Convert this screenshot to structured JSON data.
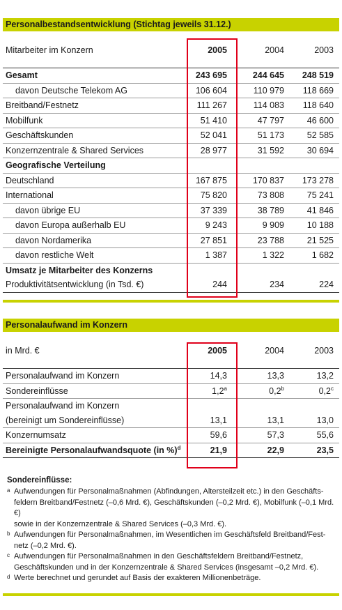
{
  "section1": {
    "title": "Personalbestandsentwicklung (Stichtag jeweils 31.12.)",
    "header": {
      "label": "Mitarbeiter im Konzern",
      "y2005": "2005",
      "y2004": "2004",
      "y2003": "2003"
    },
    "rows": [
      {
        "label": "Gesamt",
        "v2005": "243 695",
        "v2004": "244 645",
        "v2003": "248 519"
      },
      {
        "label": "davon Deutsche Telekom AG",
        "v2005": "106 604",
        "v2004": "110 979",
        "v2003": "118 669"
      },
      {
        "label": "Breitband/Festnetz",
        "v2005": "111 267",
        "v2004": "114 083",
        "v2003": "118 640"
      },
      {
        "label": "Mobilfunk",
        "v2005": "51 410",
        "v2004": "47 797",
        "v2003": "46 600"
      },
      {
        "label": "Geschäftskunden",
        "v2005": "52 041",
        "v2004": "51 173",
        "v2003": "52 585"
      },
      {
        "label": "Konzernzentrale & Shared Services",
        "v2005": "28 977",
        "v2004": "31 592",
        "v2003": "30 694"
      },
      {
        "label": "Geografische Verteilung",
        "v2005": "",
        "v2004": "",
        "v2003": ""
      },
      {
        "label": "Deutschland",
        "v2005": "167 875",
        "v2004": "170 837",
        "v2003": "173 278"
      },
      {
        "label": "International",
        "v2005": "75 820",
        "v2004": "73 808",
        "v2003": "75 241"
      },
      {
        "label": "davon übrige EU",
        "v2005": "37 339",
        "v2004": "38 789",
        "v2003": "41 846"
      },
      {
        "label": "davon Europa außerhalb EU",
        "v2005": "9 243",
        "v2004": "9 909",
        "v2003": "10 188"
      },
      {
        "label": "davon Nordamerika",
        "v2005": "27 851",
        "v2004": "23 788",
        "v2003": "21 525"
      },
      {
        "label": "davon restliche Welt",
        "v2005": "1 387",
        "v2004": "1 322",
        "v2003": "1 682"
      },
      {
        "label": "Umsatz je Mitarbeiter des Konzerns",
        "v2005": "",
        "v2004": "",
        "v2003": ""
      },
      {
        "label": "Produktivitätsentwicklung (in Tsd. €)",
        "v2005": "244",
        "v2004": "234",
        "v2003": "224"
      }
    ]
  },
  "section2": {
    "title": "Personalaufwand im Konzern",
    "header": {
      "label": "in Mrd. €",
      "y2005": "2005",
      "y2004": "2004",
      "y2003": "2003"
    },
    "rows": [
      {
        "label": "Personalaufwand im Konzern",
        "v2005": "14,3",
        "v2004": "13,3",
        "v2003": "13,2"
      },
      {
        "label": "Sondereinflüsse",
        "v2005": "1,2",
        "s2005": "a",
        "v2004": "0,2",
        "s2004": "b",
        "v2003": "0,2",
        "s2003": "c"
      },
      {
        "label": "Personalaufwand im Konzern",
        "v2005": "",
        "v2004": "",
        "v2003": ""
      },
      {
        "label": "(bereinigt um Sondereinflüsse)",
        "v2005": "13,1",
        "v2004": "13,1",
        "v2003": "13,0"
      },
      {
        "label": "Konzernumsatz",
        "v2005": "59,6",
        "v2004": "57,3",
        "v2003": "55,6"
      },
      {
        "label": "Bereinigte Personalaufwandsquote (in %)",
        "labelsup": "d",
        "v2005": "21,9",
        "v2004": "22,9",
        "v2003": "23,5"
      }
    ]
  },
  "footnotes": {
    "title": "Sondereinflüsse:",
    "items": [
      {
        "mark": "a",
        "text": "Aufwendungen für Personalmaßnahmen (Abfindungen, Altersteilzeit etc.) in den Geschäfts-\nfeldern Breitband/Festnetz (–0,6 Mrd. €), Geschäftskunden (–0,2 Mrd. €), Mobilfunk (–0,1 Mrd. €)\nsowie in der Konzernzentrale & Shared Services (–0,3 Mrd. €)."
      },
      {
        "mark": "b",
        "text": "Aufwendungen für Personalmaßnahmen, im Wesentlichen im Geschäftsfeld Breitband/Fest-\nnetz (–0,2 Mrd. €)."
      },
      {
        "mark": "c",
        "text": "Aufwendungen für Personalmaßnahmen in den Geschäftsfeldern Breitband/Festnetz,\nGeschäftskunden und in der Konzernzentrale & Shared Services (insgesamt –0,2 Mrd. €)."
      },
      {
        "mark": "d",
        "text": "Werte berechnet und gerundet auf Basis der exakteren Millionenbeträge."
      }
    ]
  },
  "colors": {
    "accent_green": "#c8d200",
    "highlight_red": "#e0001a"
  }
}
